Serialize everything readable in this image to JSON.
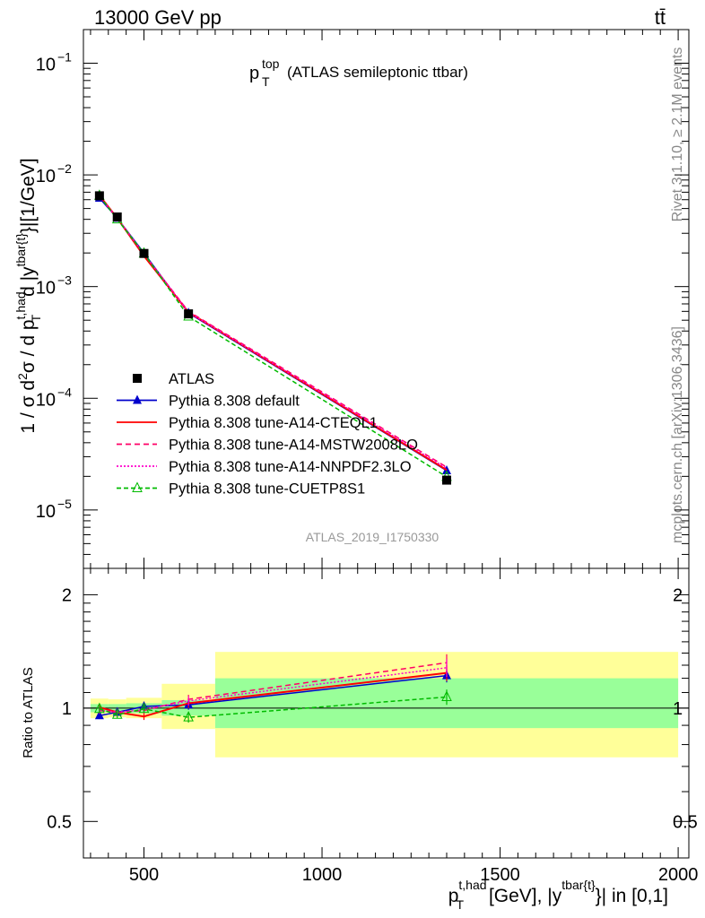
{
  "header": {
    "left": "13000 GeV pp",
    "right": "tt̄"
  },
  "side": {
    "rivet": "Rivet 3.1.10, ≥ 2.1M events",
    "mcplots": "mcplots.cern.ch [arXiv:1306.3436]"
  },
  "analysis_id": "ATLAS_2019_I1750330",
  "chart_data": [
    {
      "type": "line",
      "title": {
        "base": "p",
        "sup": "top",
        "sub": "T",
        "rest": "(ATLAS semileptonic ttbar)"
      },
      "ylabel": "1 / σ d²σ / d p_T^{t,had} d |y^{tbar{t}}| [1/GeV]",
      "yscale": "log",
      "ylim": [
        3e-06,
        0.2
      ],
      "xlim": [
        330,
        2030
      ],
      "yticks": [
        {
          "v": 1e-05,
          "label": "10",
          "exp": "−5"
        },
        {
          "v": 0.0001,
          "label": "10",
          "exp": "−4"
        },
        {
          "v": 0.001,
          "label": "10",
          "exp": "−3"
        },
        {
          "v": 0.01,
          "label": "10",
          "exp": "−2"
        },
        {
          "v": 0.1,
          "label": "10",
          "exp": "−1"
        }
      ],
      "legend_position": "lower-left",
      "x": [
        375,
        425,
        500,
        625,
        1350
      ],
      "data": {
        "name": "ATLAS",
        "color": "#000000",
        "values": [
          0.0065,
          0.0042,
          0.00198,
          0.00057,
          1.85e-05
        ]
      },
      "series": [
        {
          "name": "Pythia 8.308 default",
          "color": "#0000cc",
          "dash": "",
          "marker": "triangle",
          "values": [
            0.0062,
            0.0041,
            0.002,
            0.00058,
            2.25e-05
          ]
        },
        {
          "name": "Pythia 8.308 tune-A14-CTEQL1",
          "color": "#ff0000",
          "dash": "",
          "marker": "none",
          "values": [
            0.00655,
            0.0041,
            0.00188,
            0.00059,
            2.28e-05
          ]
        },
        {
          "name": "Pythia 8.308 tune-A14-MSTW2008LO",
          "color": "#ff0066",
          "dash": "6,4",
          "marker": "none",
          "values": [
            0.0064,
            0.0041,
            0.00195,
            0.0006,
            2.42e-05
          ]
        },
        {
          "name": "Pythia 8.308 tune-A14-NNPDF2.3LO",
          "color": "#ff00cc",
          "dash": "2,2",
          "marker": "none",
          "values": [
            0.00645,
            0.0041,
            0.00196,
            0.00059,
            2.36e-05
          ]
        },
        {
          "name": "Pythia 8.308 tune-CUETP8S1",
          "color": "#00bb00",
          "dash": "5,3",
          "marker": "open-triangle",
          "values": [
            0.0065,
            0.004,
            0.00198,
            0.00054,
            1.98e-05
          ]
        }
      ]
    },
    {
      "type": "line",
      "ylabel": "Ratio to ATLAS",
      "yscale": "log",
      "ylim": [
        0.4,
        2.35
      ],
      "yticks": [
        0.5,
        1,
        2
      ],
      "xticks": [
        500,
        1000,
        1500,
        2000
      ],
      "xlabel": "p_T^{t,had} [GeV], |y^{tbar{t}}| in [0,1]",
      "x": [
        375,
        425,
        500,
        625,
        1350
      ],
      "bands": [
        {
          "x0": 350,
          "x1": 400,
          "stat": [
            0.975,
            1.025
          ],
          "total": [
            0.94,
            1.06
          ]
        },
        {
          "x0": 400,
          "x1": 450,
          "stat": [
            0.975,
            1.025
          ],
          "total": [
            0.945,
            1.055
          ]
        },
        {
          "x0": 450,
          "x1": 550,
          "stat": [
            0.97,
            1.03
          ],
          "total": [
            0.94,
            1.065
          ]
        },
        {
          "x0": 550,
          "x1": 700,
          "stat": [
            0.955,
            1.05
          ],
          "total": [
            0.88,
            1.16
          ]
        },
        {
          "x0": 700,
          "x1": 2000,
          "stat": [
            0.885,
            1.2
          ],
          "total": [
            0.74,
            1.41
          ]
        }
      ],
      "series": [
        {
          "name": "Pythia 8.308 default",
          "color": "#0000cc",
          "dash": "",
          "marker": "triangle",
          "values": [
            0.955,
            0.975,
            1.01,
            1.02,
            1.22
          ],
          "err": [
            0.02,
            0.02,
            0.02,
            0.03,
            0.05
          ]
        },
        {
          "name": "Pythia 8.308 tune-A14-CTEQL1",
          "color": "#ff0000",
          "dash": "",
          "marker": "none",
          "values": [
            1.005,
            0.975,
            0.95,
            1.03,
            1.24
          ],
          "err": [
            0.02,
            0.02,
            0.02,
            0.03,
            0.06
          ]
        },
        {
          "name": "Pythia 8.308 tune-A14-MSTW2008LO",
          "color": "#ff0066",
          "dash": "6,4",
          "marker": "none",
          "values": [
            0.985,
            0.975,
            0.985,
            1.055,
            1.32
          ],
          "err": [
            0.02,
            0.02,
            0.02,
            0.03,
            0.07
          ]
        },
        {
          "name": "Pythia 8.308 tune-A14-NNPDF2.3LO",
          "color": "#ff00cc",
          "dash": "2,2",
          "marker": "none",
          "values": [
            0.99,
            0.975,
            0.99,
            1.045,
            1.28
          ],
          "err": [
            0.02,
            0.02,
            0.02,
            0.03,
            0.07
          ]
        },
        {
          "name": "Pythia 8.308 tune-CUETP8S1",
          "color": "#00bb00",
          "dash": "5,3",
          "marker": "open-triangle",
          "values": [
            0.995,
            0.96,
            0.995,
            0.945,
            1.07
          ],
          "err": [
            0.02,
            0.02,
            0.02,
            0.03,
            0.05
          ]
        }
      ]
    }
  ]
}
